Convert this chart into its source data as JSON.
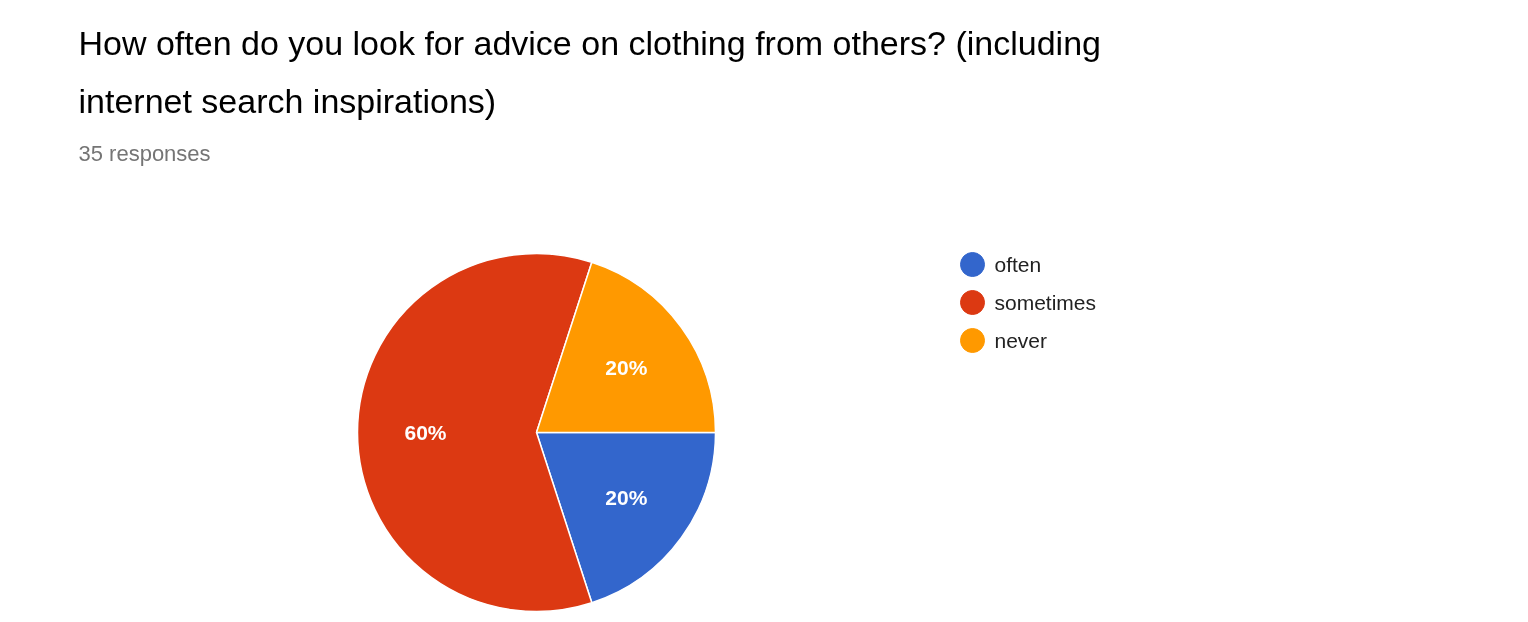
{
  "chart_data": {
    "type": "pie",
    "title": "How often do you look for advice on clothing from others? (including internet search inspirations)",
    "subtitle": "35 responses",
    "categories": [
      "often",
      "sometimes",
      "never"
    ],
    "values": [
      20,
      60,
      20
    ],
    "colors": [
      "#3366cc",
      "#dc3912",
      "#ff9900"
    ],
    "value_labels": [
      "20%",
      "60%",
      "20%"
    ],
    "legend": "right"
  }
}
